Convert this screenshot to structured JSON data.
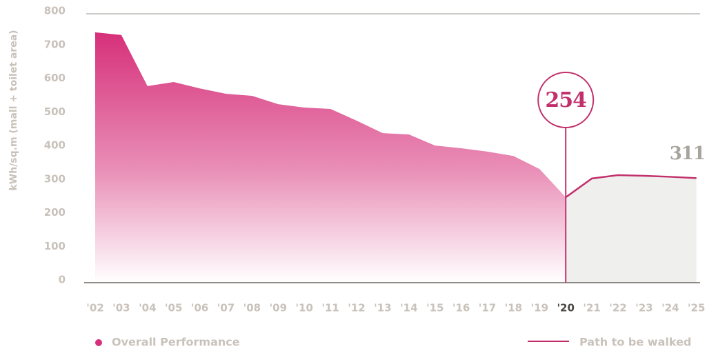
{
  "chart_data": {
    "type": "area",
    "y_label": "kWh/sq.m (mall + toilet area)",
    "categories": [
      "'02",
      "'03",
      "'04",
      "'05",
      "'06",
      "'07",
      "'08",
      "'09",
      "'10",
      "'11",
      "'12",
      "'13",
      "'14",
      "'15",
      "'16",
      "'17",
      "'18",
      "'19",
      "'20",
      "'21",
      "'22",
      "'23",
      "'24",
      "'25"
    ],
    "series": [
      {
        "name": "Overall Performance",
        "color": "#d6307a",
        "values": [
          745,
          737,
          585,
          597,
          578,
          562,
          556,
          531,
          521,
          517,
          482,
          445,
          441,
          408,
          400,
          390,
          377,
          338,
          254,
          null,
          null,
          null,
          null,
          null
        ]
      },
      {
        "name": "Path to be walked",
        "color": "#c2306c",
        "values": [
          null,
          null,
          null,
          null,
          null,
          null,
          null,
          null,
          null,
          null,
          null,
          null,
          null,
          null,
          null,
          null,
          null,
          null,
          254,
          310,
          320,
          318,
          315,
          311
        ]
      }
    ],
    "ylim": [
      0,
      800
    ],
    "yticks": [
      0,
      100,
      200,
      300,
      400,
      500,
      600,
      700,
      800
    ]
  }
}
